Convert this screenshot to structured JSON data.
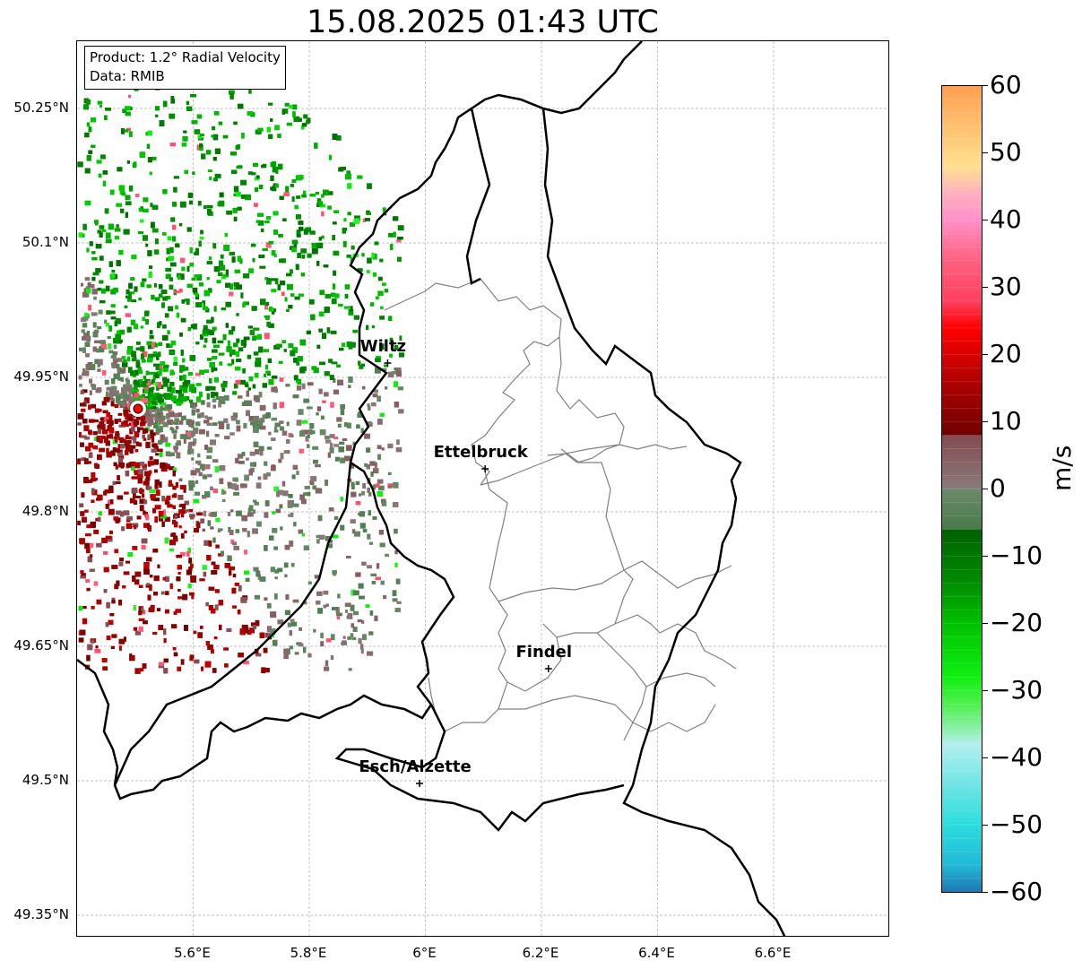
{
  "title": "15.08.2025 01:43 UTC",
  "info": {
    "product": "Product: 1.2° Radial Velocity",
    "data_source": "Data: RMIB"
  },
  "lat_ticks": [
    "50.25°N",
    "50.1°N",
    "49.95°N",
    "49.8°N",
    "49.65°N",
    "49.5°N",
    "49.35°N"
  ],
  "lon_ticks": [
    "5.6°E",
    "5.8°E",
    "6°E",
    "6.2°E",
    "6.4°E",
    "6.6°E"
  ],
  "cities": [
    {
      "name": "Wiltz",
      "lon": 5.935,
      "lat": 49.966
    },
    {
      "name": "Ettelbruck",
      "lon": 6.103,
      "lat": 49.848
    },
    {
      "name": "Findel",
      "lon": 6.212,
      "lat": 49.625
    },
    {
      "name": "Esch/Alzette",
      "lon": 5.99,
      "lat": 49.497
    }
  ],
  "radar": {
    "lon": 5.505,
    "lat": 49.915,
    "marker_color": "#ff0000"
  },
  "colorbar": {
    "label": "m/s",
    "ticks": [
      "60",
      "50",
      "40",
      "30",
      "20",
      "10",
      "0",
      "−10",
      "−20",
      "−30",
      "−40",
      "−50",
      "−60"
    ],
    "range": [
      -60,
      60
    ],
    "stops": [
      {
        "v": -60,
        "c": "#1f77b4"
      },
      {
        "v": -56,
        "c": "#22b8d6"
      },
      {
        "v": -50,
        "c": "#2cdede"
      },
      {
        "v": -44,
        "c": "#70e4e4"
      },
      {
        "v": -38,
        "c": "#b4f0f0"
      },
      {
        "v": -36,
        "c": "#90f0b0"
      },
      {
        "v": -32,
        "c": "#50f050"
      },
      {
        "v": -28,
        "c": "#10f010"
      },
      {
        "v": -20,
        "c": "#00c000"
      },
      {
        "v": -14,
        "c": "#008c00"
      },
      {
        "v": -6,
        "c": "#006000"
      },
      {
        "v": -6,
        "c": "#4a7a4a"
      },
      {
        "v": 0,
        "c": "#6a8a6a"
      },
      {
        "v": 0,
        "c": "#8a7a7a"
      },
      {
        "v": 8,
        "c": "#844a50"
      },
      {
        "v": 8,
        "c": "#700000"
      },
      {
        "v": 16,
        "c": "#b00000"
      },
      {
        "v": 24,
        "c": "#ff0000"
      },
      {
        "v": 28,
        "c": "#ff4060"
      },
      {
        "v": 34,
        "c": "#ff6080"
      },
      {
        "v": 40,
        "c": "#ff90c8"
      },
      {
        "v": 44,
        "c": "#ffb0c0"
      },
      {
        "v": 48,
        "c": "#ffe090"
      },
      {
        "v": 54,
        "c": "#ffc070"
      },
      {
        "v": 60,
        "c": "#ffa050"
      }
    ]
  },
  "extent": {
    "lon": [
      5.4,
      6.8
    ],
    "lat": [
      49.3,
      50.3
    ]
  },
  "colors": {
    "country_border": "#000000",
    "canton_border": "#808080",
    "gridline": "#b0b0b0"
  }
}
